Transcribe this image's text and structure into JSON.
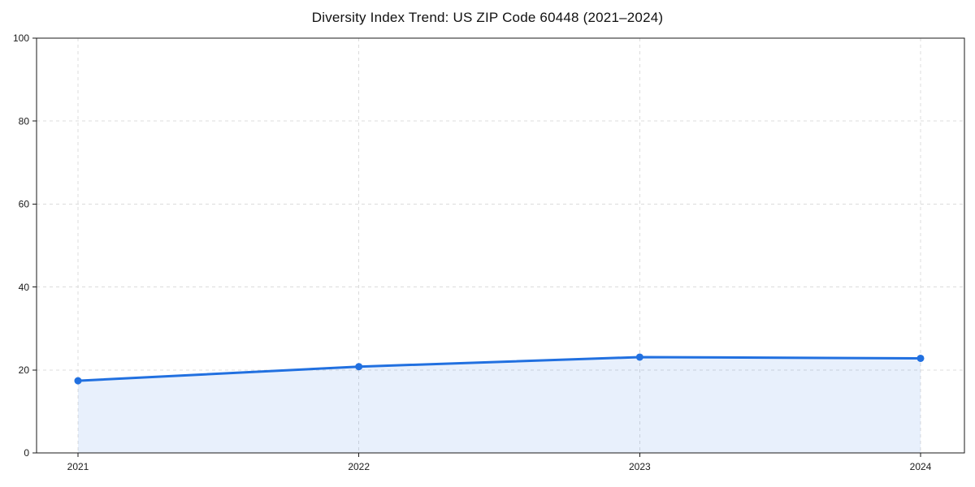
{
  "chart_data": {
    "type": "line",
    "title": "Diversity Index Trend: US ZIP Code 60448 (2021–2024)",
    "categories": [
      "2021",
      "2022",
      "2023",
      "2024"
    ],
    "values": [
      17.4,
      20.8,
      23.1,
      22.8
    ],
    "xlabel": "",
    "ylabel": "",
    "ylim": [
      0,
      100
    ],
    "yticks": [
      0,
      20,
      40,
      60,
      80,
      100
    ],
    "grid": "dashed-both-axes",
    "legend": "none",
    "area_fill": true,
    "marker": "circle",
    "colors": {
      "line": "#2170e0",
      "marker": "#2170e0",
      "fill": "rgba(33,112,224,0.10)",
      "grid": "#dcdcdc",
      "spine": "#1a1a1a",
      "tick_label": "#1a1a1a",
      "title": "#111111",
      "background": "#ffffff"
    }
  }
}
